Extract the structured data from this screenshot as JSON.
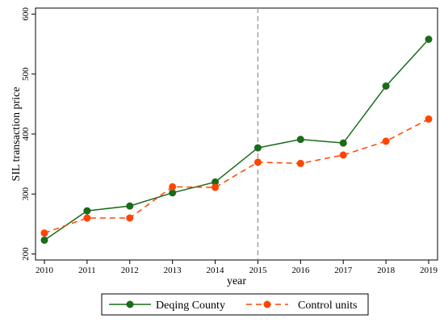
{
  "chart_data": {
    "type": "line",
    "xlabel": "year",
    "ylabel": "SIL transaction price",
    "x": [
      2010,
      2011,
      2012,
      2013,
      2014,
      2015,
      2016,
      2017,
      2018,
      2019
    ],
    "xlim": [
      2010,
      2019
    ],
    "ylim": [
      190,
      610
    ],
    "yticks": [
      200,
      300,
      400,
      500,
      600
    ],
    "grid": false,
    "reference_line": {
      "x": 2015,
      "style": "dashed",
      "color": "#a0a0a0"
    },
    "legend_position": "bottom",
    "series": [
      {
        "name": "Deqing County",
        "color": "#1a6b1a",
        "line_style": "solid",
        "values": [
          223,
          272,
          280,
          302,
          320,
          377,
          391,
          385,
          480,
          558
        ]
      },
      {
        "name": "Control units",
        "color": "#ff4500",
        "line_style": "dashed",
        "values": [
          235,
          260,
          260,
          312,
          311,
          353,
          351,
          365,
          388,
          425
        ]
      }
    ]
  }
}
